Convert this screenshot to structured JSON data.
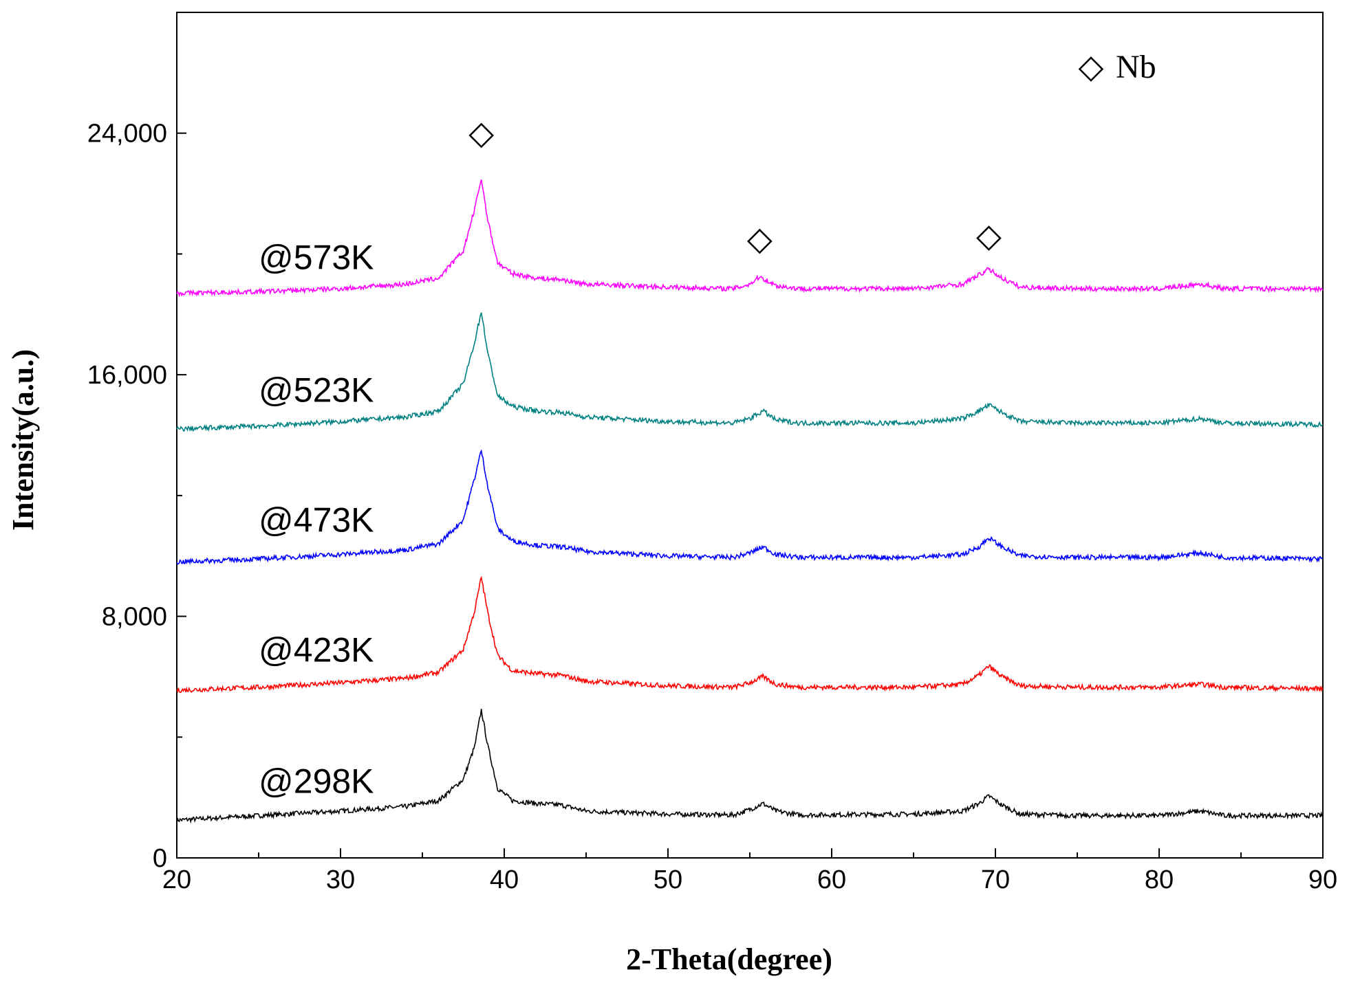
{
  "chart_data": {
    "type": "line",
    "title": "",
    "xlabel": "2-Theta(degree)",
    "ylabel": "Intensity(a.u.)",
    "xlim": [
      20,
      90
    ],
    "ylim": [
      0,
      28000
    ],
    "x_ticks": [
      20,
      30,
      40,
      50,
      60,
      70,
      80,
      90
    ],
    "x_tick_labels": [
      "20",
      "30",
      "40",
      "50",
      "60",
      "70",
      "80",
      "90"
    ],
    "y_ticks": [
      0,
      8000,
      16000,
      24000
    ],
    "y_tick_labels": [
      "0",
      "8,000",
      "16,000",
      "24,000"
    ],
    "legend": {
      "symbol": "◇",
      "label": "Nb",
      "placement": "top-right"
    },
    "peak_markers": [
      {
        "x": 38.6,
        "y": 24000,
        "symbol": "◇"
      },
      {
        "x": 55.6,
        "y": 20500,
        "symbol": "◇"
      },
      {
        "x": 69.6,
        "y": 20600,
        "symbol": "◇"
      }
    ],
    "series": [
      {
        "name": "@298K",
        "color": "#000000",
        "label_at": [
          25,
          2150
        ],
        "points": [
          [
            20,
            1250
          ],
          [
            25,
            1400
          ],
          [
            30,
            1550
          ],
          [
            34,
            1700
          ],
          [
            36,
            1900
          ],
          [
            37.5,
            2600
          ],
          [
            38.2,
            3700
          ],
          [
            38.6,
            4900
          ],
          [
            39.0,
            3700
          ],
          [
            39.6,
            2300
          ],
          [
            40.5,
            1900
          ],
          [
            42,
            1800
          ],
          [
            43.5,
            1750
          ],
          [
            45,
            1550
          ],
          [
            50,
            1450
          ],
          [
            54,
            1420
          ],
          [
            55,
            1600
          ],
          [
            55.8,
            1800
          ],
          [
            56.6,
            1550
          ],
          [
            58,
            1420
          ],
          [
            65,
            1450
          ],
          [
            68,
            1550
          ],
          [
            69,
            1800
          ],
          [
            69.6,
            2050
          ],
          [
            70.4,
            1750
          ],
          [
            71.5,
            1450
          ],
          [
            75,
            1400
          ],
          [
            80,
            1400
          ],
          [
            82.5,
            1550
          ],
          [
            84,
            1400
          ],
          [
            90,
            1400
          ]
        ]
      },
      {
        "name": "@423K",
        "color": "#ff0000",
        "label_at": [
          25,
          6500
        ],
        "points": [
          [
            20,
            5550
          ],
          [
            25,
            5650
          ],
          [
            30,
            5800
          ],
          [
            34,
            5950
          ],
          [
            36,
            6150
          ],
          [
            37.5,
            6900
          ],
          [
            38.2,
            8200
          ],
          [
            38.6,
            9300
          ],
          [
            39.0,
            8100
          ],
          [
            39.6,
            6700
          ],
          [
            40.5,
            6200
          ],
          [
            42,
            6100
          ],
          [
            43.5,
            6050
          ],
          [
            45,
            5850
          ],
          [
            50,
            5700
          ],
          [
            54,
            5650
          ],
          [
            55,
            5800
          ],
          [
            55.8,
            6000
          ],
          [
            56.6,
            5750
          ],
          [
            58,
            5650
          ],
          [
            65,
            5650
          ],
          [
            68,
            5750
          ],
          [
            69,
            6050
          ],
          [
            69.6,
            6350
          ],
          [
            70.4,
            6000
          ],
          [
            71.5,
            5700
          ],
          [
            75,
            5650
          ],
          [
            80,
            5650
          ],
          [
            82.5,
            5750
          ],
          [
            84,
            5650
          ],
          [
            90,
            5600
          ]
        ]
      },
      {
        "name": "@473K",
        "color": "#0000ff",
        "label_at": [
          25,
          10800
        ],
        "points": [
          [
            20,
            9800
          ],
          [
            25,
            9900
          ],
          [
            30,
            10050
          ],
          [
            34,
            10200
          ],
          [
            36,
            10400
          ],
          [
            37.5,
            11200
          ],
          [
            38.2,
            12600
          ],
          [
            38.6,
            13500
          ],
          [
            39.0,
            12300
          ],
          [
            39.6,
            10900
          ],
          [
            40.5,
            10500
          ],
          [
            42,
            10350
          ],
          [
            43.5,
            10300
          ],
          [
            45,
            10150
          ],
          [
            50,
            10000
          ],
          [
            54,
            9950
          ],
          [
            55,
            10100
          ],
          [
            55.8,
            10300
          ],
          [
            56.6,
            10050
          ],
          [
            58,
            9950
          ],
          [
            65,
            9950
          ],
          [
            68,
            10050
          ],
          [
            69,
            10300
          ],
          [
            69.6,
            10600
          ],
          [
            70.4,
            10300
          ],
          [
            71.5,
            10000
          ],
          [
            75,
            9950
          ],
          [
            80,
            9950
          ],
          [
            82.5,
            10100
          ],
          [
            84,
            9950
          ],
          [
            90,
            9900
          ]
        ]
      },
      {
        "name": "@523K",
        "color": "#008080",
        "label_at": [
          25,
          15100
        ],
        "points": [
          [
            20,
            14200
          ],
          [
            25,
            14300
          ],
          [
            30,
            14450
          ],
          [
            34,
            14600
          ],
          [
            36,
            14800
          ],
          [
            37.5,
            15700
          ],
          [
            38.2,
            17100
          ],
          [
            38.6,
            18100
          ],
          [
            39.0,
            16700
          ],
          [
            39.6,
            15300
          ],
          [
            40.5,
            14950
          ],
          [
            42,
            14800
          ],
          [
            43.5,
            14750
          ],
          [
            45,
            14600
          ],
          [
            50,
            14450
          ],
          [
            54,
            14400
          ],
          [
            55,
            14550
          ],
          [
            55.8,
            14800
          ],
          [
            56.6,
            14500
          ],
          [
            58,
            14400
          ],
          [
            65,
            14400
          ],
          [
            68,
            14550
          ],
          [
            69,
            14800
          ],
          [
            69.6,
            15000
          ],
          [
            70.4,
            14750
          ],
          [
            71.5,
            14450
          ],
          [
            75,
            14400
          ],
          [
            80,
            14400
          ],
          [
            82.5,
            14550
          ],
          [
            84,
            14400
          ],
          [
            90,
            14350
          ]
        ]
      },
      {
        "name": "@573K",
        "color": "#ff00ff",
        "label_at": [
          25,
          19500
        ],
        "points": [
          [
            20,
            18700
          ],
          [
            25,
            18750
          ],
          [
            30,
            18850
          ],
          [
            34,
            19000
          ],
          [
            36,
            19200
          ],
          [
            37.5,
            20100
          ],
          [
            38.2,
            21500
          ],
          [
            38.6,
            22500
          ],
          [
            39.0,
            21100
          ],
          [
            39.6,
            19700
          ],
          [
            40.5,
            19350
          ],
          [
            42,
            19200
          ],
          [
            43.5,
            19150
          ],
          [
            45,
            19000
          ],
          [
            50,
            18900
          ],
          [
            54,
            18850
          ],
          [
            55,
            19000
          ],
          [
            55.6,
            19250
          ],
          [
            56.6,
            18950
          ],
          [
            58,
            18850
          ],
          [
            65,
            18850
          ],
          [
            68,
            19000
          ],
          [
            69,
            19300
          ],
          [
            69.6,
            19500
          ],
          [
            70.4,
            19200
          ],
          [
            71.5,
            18900
          ],
          [
            75,
            18850
          ],
          [
            80,
            18850
          ],
          [
            82.5,
            19000
          ],
          [
            84,
            18850
          ],
          [
            90,
            18850
          ]
        ]
      }
    ]
  }
}
